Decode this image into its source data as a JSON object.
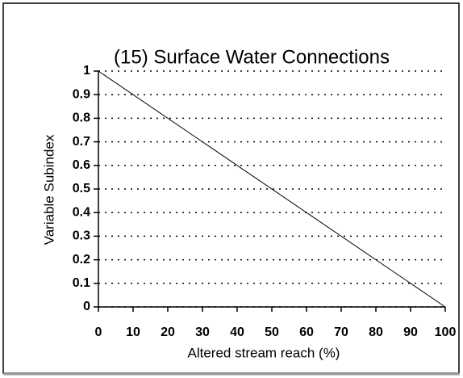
{
  "chart_data": {
    "type": "line",
    "title": "(15) Surface Water Connections",
    "xlabel": "Altered stream reach (%)",
    "ylabel": "Variable Subindex",
    "x": [
      0,
      100
    ],
    "series": [
      {
        "name": null,
        "color": "#000000",
        "values": [
          1,
          0
        ]
      }
    ],
    "xlim": [
      0,
      100
    ],
    "xticks": [
      0,
      10,
      20,
      30,
      40,
      50,
      60,
      70,
      80,
      90,
      100
    ],
    "ylim": [
      0,
      1
    ],
    "yticks": [
      0,
      0.1,
      0.2,
      0.3,
      0.4,
      0.5,
      0.6,
      0.7,
      0.8,
      0.9,
      1
    ],
    "grid": true
  }
}
